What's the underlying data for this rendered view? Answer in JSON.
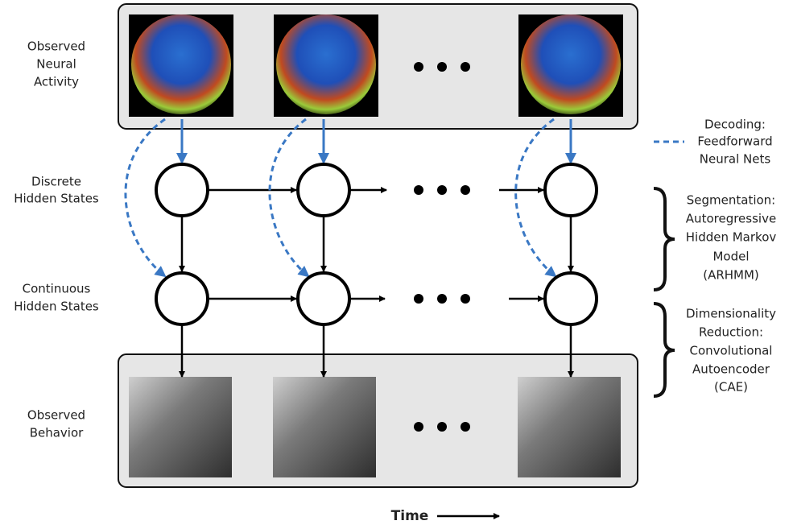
{
  "rows": [
    {
      "label": [
        "Observed",
        "Neural",
        "Activity"
      ]
    },
    {
      "label": [
        "Discrete",
        "Hidden States"
      ]
    },
    {
      "label": [
        "Continuous",
        "Hidden States"
      ]
    },
    {
      "label": [
        "Observed",
        "Behavior"
      ]
    }
  ],
  "legend": {
    "label": [
      "Decoding:",
      "Feedforward",
      "Neural Nets"
    ]
  },
  "annotations": [
    {
      "label": [
        "Segmentation:",
        "Autoregressive",
        "Hidden Markov",
        "Model",
        "(ARHMM)"
      ]
    },
    {
      "label": [
        "Dimensionality",
        "Reduction:",
        "Convolutional",
        "Autoencoder",
        "(CAE)"
      ]
    }
  ],
  "time_label": "Time"
}
